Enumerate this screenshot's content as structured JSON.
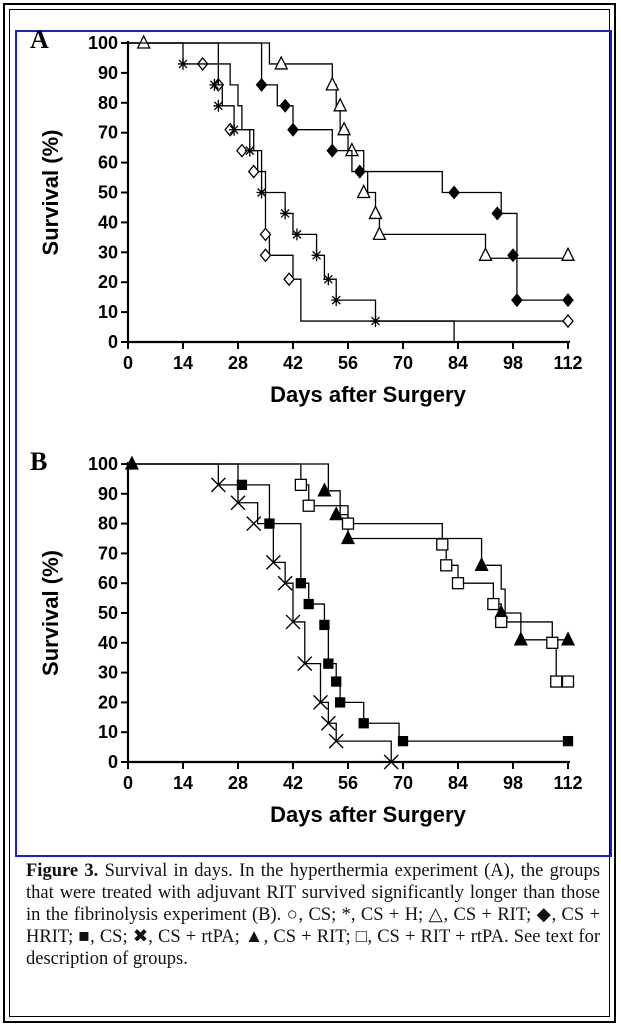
{
  "caption": {
    "label": "Figure 3.",
    "text": "Survival in days. In the hyperthermia experiment (A), the groups that were treated with adjuvant RIT survived significantly longer than those in the fibrinolysis experiment (B). ○, CS; *, CS + H; △, CS + RIT; ◆, CS + HRIT; ■, CS; ✖, CS + rtPA; ▲, CS + RIT; □, CS + RIT + rtPA. See text for description of groups."
  },
  "chart_data": [
    {
      "panel": "A",
      "type": "line",
      "xlabel": "Days after Surgery",
      "ylabel": "Survival (%)",
      "xlim": [
        0,
        112
      ],
      "ylim": [
        0,
        100
      ],
      "xticks": [
        0,
        14,
        28,
        42,
        56,
        70,
        84,
        98,
        112
      ],
      "yticks": [
        0,
        10,
        20,
        30,
        40,
        50,
        60,
        70,
        80,
        90,
        100
      ],
      "series": [
        {
          "marker": "diamond-open",
          "steps": [
            [
              0,
              100
            ],
            [
              19,
              100
            ],
            [
              23,
              93
            ],
            [
              26,
              86
            ],
            [
              28,
              79
            ],
            [
              29,
              71
            ],
            [
              31,
              64
            ],
            [
              33,
              57
            ],
            [
              35,
              43
            ],
            [
              35,
              36
            ],
            [
              36,
              29
            ],
            [
              42,
              21
            ],
            [
              44,
              7
            ],
            [
              112,
              7
            ]
          ],
          "markers": [
            [
              19,
              93
            ],
            [
              23,
              86
            ],
            [
              26,
              71
            ],
            [
              29,
              64
            ],
            [
              32,
              57
            ],
            [
              35,
              36
            ],
            [
              35,
              29
            ],
            [
              41,
              21
            ],
            [
              112,
              7
            ]
          ]
        },
        {
          "marker": "star",
          "steps": [
            [
              0,
              100
            ],
            [
              14,
              100
            ],
            [
              14,
              93
            ],
            [
              23,
              86
            ],
            [
              24,
              79
            ],
            [
              27,
              71
            ],
            [
              32,
              64
            ],
            [
              34,
              50
            ],
            [
              40,
              43
            ],
            [
              42,
              36
            ],
            [
              48,
              29
            ],
            [
              50,
              21
            ],
            [
              53,
              14
            ],
            [
              63,
              7
            ],
            [
              83,
              7
            ],
            [
              83,
              0
            ]
          ],
          "markers": [
            [
              14,
              93
            ],
            [
              22,
              86
            ],
            [
              23,
              79
            ],
            [
              27,
              71
            ],
            [
              31,
              64
            ],
            [
              34,
              50
            ],
            [
              40,
              43
            ],
            [
              43,
              36
            ],
            [
              48,
              29
            ],
            [
              51,
              21
            ],
            [
              53,
              14
            ],
            [
              63,
              7
            ]
          ]
        },
        {
          "marker": "triangle-open",
          "steps": [
            [
              0,
              100
            ],
            [
              36,
              100
            ],
            [
              36,
              93
            ],
            [
              52,
              93
            ],
            [
              52,
              86
            ],
            [
              53,
              79
            ],
            [
              54,
              71
            ],
            [
              56,
              64
            ],
            [
              60,
              57
            ],
            [
              61,
              50
            ],
            [
              63,
              43
            ],
            [
              64,
              36
            ],
            [
              91,
              36
            ],
            [
              91,
              28
            ],
            [
              112,
              28
            ]
          ],
          "markers": [
            [
              4,
              100
            ],
            [
              39,
              93
            ],
            [
              52,
              86
            ],
            [
              54,
              79
            ],
            [
              55,
              71
            ],
            [
              57,
              64
            ],
            [
              60,
              50
            ],
            [
              63,
              43
            ],
            [
              64,
              36
            ],
            [
              91,
              29
            ],
            [
              112,
              29
            ]
          ]
        },
        {
          "marker": "diamond-filled",
          "steps": [
            [
              0,
              100
            ],
            [
              34,
              100
            ],
            [
              34,
              86
            ],
            [
              38,
              79
            ],
            [
              42,
              71
            ],
            [
              52,
              64
            ],
            [
              57,
              57
            ],
            [
              80,
              50
            ],
            [
              95,
              43
            ],
            [
              99,
              28
            ],
            [
              99,
              14
            ],
            [
              112,
              14
            ]
          ],
          "markers": [
            [
              34,
              86
            ],
            [
              40,
              79
            ],
            [
              42,
              71
            ],
            [
              52,
              64
            ],
            [
              59,
              57
            ],
            [
              83,
              50
            ],
            [
              94,
              43
            ],
            [
              98,
              29
            ],
            [
              99,
              14
            ],
            [
              112,
              14
            ]
          ]
        }
      ]
    },
    {
      "panel": "B",
      "type": "line",
      "xlabel": "Days after Surgery",
      "ylabel": "Survival (%)",
      "xlim": [
        0,
        112
      ],
      "ylim": [
        0,
        100
      ],
      "xticks": [
        0,
        14,
        28,
        42,
        56,
        70,
        84,
        98,
        112
      ],
      "yticks": [
        0,
        10,
        20,
        30,
        40,
        50,
        60,
        70,
        80,
        90,
        100
      ],
      "series": [
        {
          "marker": "cross",
          "steps": [
            [
              0,
              100
            ],
            [
              23,
              100
            ],
            [
              23,
              93
            ],
            [
              28,
              87
            ],
            [
              33,
              80
            ],
            [
              37,
              67
            ],
            [
              40,
              60
            ],
            [
              42,
              47
            ],
            [
              45,
              33
            ],
            [
              49,
              20
            ],
            [
              51,
              13
            ],
            [
              53,
              7
            ],
            [
              67,
              7
            ],
            [
              67,
              0
            ]
          ],
          "markers": [
            [
              23,
              93
            ],
            [
              28,
              87
            ],
            [
              32,
              80
            ],
            [
              37,
              67
            ],
            [
              40,
              60
            ],
            [
              42,
              47
            ],
            [
              45,
              33
            ],
            [
              49,
              20
            ],
            [
              51,
              13
            ],
            [
              53,
              7
            ],
            [
              67,
              0
            ]
          ]
        },
        {
          "marker": "square-filled",
          "steps": [
            [
              0,
              100
            ],
            [
              28,
              100
            ],
            [
              28,
              93
            ],
            [
              36,
              80
            ],
            [
              44,
              60
            ],
            [
              46,
              53
            ],
            [
              50,
              47
            ],
            [
              51,
              33
            ],
            [
              53,
              27
            ],
            [
              54,
              20
            ],
            [
              60,
              13
            ],
            [
              69,
              7
            ],
            [
              112,
              7
            ]
          ],
          "markers": [
            [
              29,
              93
            ],
            [
              36,
              80
            ],
            [
              44,
              60
            ],
            [
              46,
              53
            ],
            [
              50,
              46
            ],
            [
              51,
              33
            ],
            [
              53,
              27
            ],
            [
              54,
              20
            ],
            [
              60,
              13
            ],
            [
              70,
              7
            ],
            [
              112,
              7
            ]
          ]
        },
        {
          "marker": "triangle-filled",
          "steps": [
            [
              0,
              100
            ],
            [
              51,
              100
            ],
            [
              51,
              91
            ],
            [
              54,
              83
            ],
            [
              56,
              75
            ],
            [
              75,
              75
            ],
            [
              90,
              66
            ],
            [
              95,
              58
            ],
            [
              96,
              50
            ],
            [
              100,
              41
            ],
            [
              112,
              41
            ]
          ],
          "markers": [
            [
              1,
              100
            ],
            [
              50,
              91
            ],
            [
              53,
              83
            ],
            [
              56,
              75
            ],
            [
              90,
              66
            ],
            [
              95,
              50
            ],
            [
              100,
              41
            ],
            [
              112,
              41
            ]
          ]
        },
        {
          "marker": "square-open",
          "steps": [
            [
              0,
              100
            ],
            [
              44,
              100
            ],
            [
              44,
              93
            ],
            [
              46,
              86
            ],
            [
              53,
              86
            ],
            [
              56,
              80
            ],
            [
              80,
              73
            ],
            [
              81,
              66
            ],
            [
              84,
              60
            ],
            [
              93,
              53
            ],
            [
              95,
              47
            ],
            [
              108,
              40
            ],
            [
              109,
              27
            ],
            [
              112,
              27
            ]
          ],
          "markers": [
            [
              44,
              93
            ],
            [
              46,
              86
            ],
            [
              56,
              80
            ],
            [
              80,
              73
            ],
            [
              81,
              66
            ],
            [
              84,
              60
            ],
            [
              93,
              53
            ],
            [
              95,
              47
            ],
            [
              108,
              40
            ],
            [
              109,
              27
            ],
            [
              112,
              27
            ]
          ]
        }
      ]
    }
  ]
}
